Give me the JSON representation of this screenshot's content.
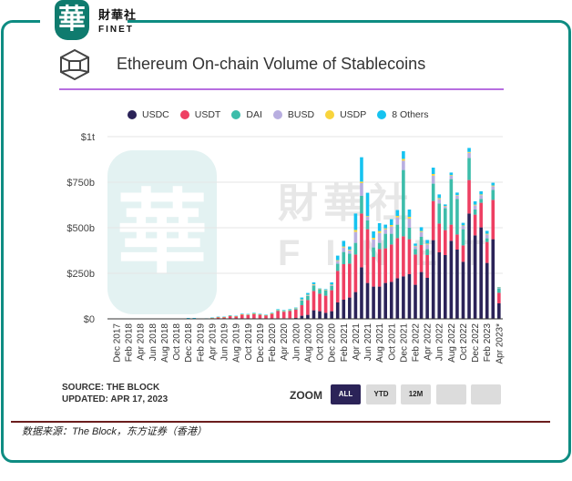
{
  "brand": {
    "logo_char": "華",
    "name_cn": "財華社",
    "name_en": "FINET"
  },
  "caption": "数据来源：The Block，东方证券（香港）",
  "source": {
    "line1": "SOURCE: THE BLOCK",
    "line2": "UPDATED: APR 17, 2023"
  },
  "zoom": {
    "label": "ZOOM",
    "buttons": [
      "ALL",
      "YTD",
      "12M",
      "",
      ""
    ],
    "active": "ALL"
  },
  "watermark": {
    "char": "華",
    "cn": "財華社",
    "en": "FINET"
  },
  "chart_data": {
    "type": "bar",
    "stacked": true,
    "title": "Ethereum On-chain Volume of Stablecoins",
    "xlabel": "",
    "ylabel": "",
    "ylim": [
      0,
      1000
    ],
    "y_unit": "billions USD",
    "y_ticks": [
      0,
      250,
      500,
      750,
      1000
    ],
    "y_tick_labels": [
      "$0",
      "$250b",
      "$500b",
      "$750b",
      "$1t"
    ],
    "grid": true,
    "legend_position": "top",
    "categories": [
      "Dec 2017",
      "Jan 2018",
      "Feb 2018",
      "Mar 2018",
      "Apr 2018",
      "May 2018",
      "Jun 2018",
      "Jul 2018",
      "Aug 2018",
      "Sep 2018",
      "Oct 2018",
      "Nov 2018",
      "Dec 2018",
      "Jan 2019",
      "Feb 2019",
      "Mar 2019",
      "Apr 2019",
      "May 2019",
      "Jun 2019",
      "Jul 2019",
      "Aug 2019",
      "Sep 2019",
      "Oct 2019",
      "Nov 2019",
      "Dec 2019",
      "Jan 2020",
      "Feb 2020",
      "Mar 2020",
      "Apr 2020",
      "May 2020",
      "Jun 2020",
      "Jul 2020",
      "Aug 2020",
      "Sep 2020",
      "Oct 2020",
      "Nov 2020",
      "Dec 2020",
      "Jan 2021",
      "Feb 2021",
      "Mar 2021",
      "Apr 2021",
      "May 2021",
      "Jun 2021",
      "Jul 2021",
      "Aug 2021",
      "Sep 2021",
      "Oct 2021",
      "Nov 2021",
      "Dec 2021",
      "Jan 2022",
      "Feb 2022",
      "Mar 2022",
      "Apr 2022",
      "May 2022",
      "Jun 2022",
      "Jul 2022",
      "Aug 2022",
      "Sep 2022",
      "Oct 2022",
      "Nov 2022",
      "Dec 2022",
      "Jan 2023",
      "Feb 2023",
      "Mar 2023",
      "Apr 2023"
    ],
    "x_tick_labels": [
      "Dec 2017",
      "Feb 2018",
      "Apr 2018",
      "Jun 2018",
      "Aug 2018",
      "Oct 2018",
      "Dec 2018",
      "Feb 2019",
      "Apr 2019",
      "Jun 2019",
      "Aug 2019",
      "Oct 2019",
      "Dec 2019",
      "Feb 2020",
      "Apr 2020",
      "Jun 2020",
      "Aug 2020",
      "Oct 2020",
      "Dec 2020",
      "Feb 2021",
      "Apr 2021",
      "Jun 2021",
      "Aug 2021",
      "Oct 2021",
      "Dec 2021",
      "Feb 2022",
      "Apr 2022",
      "Jun 2022",
      "Aug 2022",
      "Oct 2022",
      "Dec 2022",
      "Feb 2023",
      "Apr 2023*"
    ],
    "series": [
      {
        "name": "USDC",
        "color": "#2b2358",
        "values": [
          0,
          0,
          0,
          0,
          0,
          0,
          0,
          0,
          0,
          0,
          0,
          0,
          0,
          0,
          0,
          0,
          0,
          0,
          0,
          0,
          0,
          1,
          1,
          1,
          1,
          1,
          2,
          3,
          3,
          3,
          5,
          17,
          22,
          47,
          42,
          33,
          42,
          90,
          105,
          117,
          147,
          283,
          197,
          177,
          177,
          197,
          203,
          223,
          233,
          245,
          187,
          257,
          225,
          432,
          365,
          350,
          428,
          380,
          313,
          578,
          458,
          502,
          307,
          437,
          85
        ]
      },
      {
        "name": "USDT",
        "color": "#ee3f62",
        "values": [
          0,
          0,
          0,
          0,
          0,
          0,
          0,
          0,
          0,
          0,
          0,
          0,
          3,
          3,
          2,
          2,
          5,
          9,
          9,
          15,
          13,
          22,
          21,
          26,
          22,
          18,
          26,
          40,
          36,
          40,
          45,
          58,
          81,
          106,
          96,
          94,
          115,
          173,
          195,
          186,
          206,
          295,
          295,
          163,
          206,
          190,
          205,
          220,
          220,
          192,
          166,
          148,
          125,
          215,
          158,
          137,
          89,
          83,
          90,
          184,
          114,
          135,
          115,
          216,
          58
        ]
      },
      {
        "name": "DAI",
        "color": "#3dbdaa",
        "values": [
          0,
          0,
          0,
          0,
          0,
          0,
          0,
          0,
          0,
          0,
          0,
          0,
          0,
          0,
          0,
          0,
          0,
          0,
          0,
          0,
          0,
          0,
          0,
          1,
          1,
          1,
          1,
          3,
          3,
          4,
          5,
          25,
          22,
          30,
          25,
          30,
          23,
          40,
          67,
          55,
          64,
          97,
          48,
          52,
          34,
          80,
          59,
          74,
          364,
          63,
          30,
          45,
          33,
          95,
          110,
          120,
          250,
          195,
          89,
          121,
          28,
          21,
          20,
          55,
          24
        ]
      },
      {
        "name": "BUSD",
        "color": "#b8aee0",
        "values": [
          0,
          0,
          0,
          0,
          0,
          0,
          0,
          0,
          0,
          0,
          0,
          0,
          0,
          0,
          0,
          0,
          0,
          0,
          0,
          0,
          0,
          0,
          0,
          0,
          0,
          0,
          0,
          0,
          0,
          0,
          1,
          4,
          4,
          4,
          1,
          1,
          5,
          15,
          25,
          18,
          60,
          70,
          20,
          44,
          54,
          25,
          40,
          40,
          51,
          50,
          15,
          27,
          25,
          44,
          25,
          11,
          18,
          18,
          18,
          28,
          23,
          21,
          21,
          20,
          4
        ]
      },
      {
        "name": "USDP",
        "color": "#f8d43c",
        "values": [
          0,
          0,
          0,
          0,
          0,
          0,
          0,
          0,
          0,
          0,
          0,
          0,
          0,
          0,
          0,
          0,
          1,
          1,
          1,
          2,
          2,
          2,
          2,
          2,
          2,
          1,
          1,
          2,
          2,
          2,
          2,
          3,
          3,
          3,
          1,
          1,
          3,
          4,
          5,
          4,
          11,
          8,
          4,
          9,
          11,
          5,
          8,
          8,
          10,
          10,
          3,
          5,
          5,
          9,
          5,
          2,
          4,
          3,
          3,
          5,
          4,
          4,
          4,
          4,
          2
        ]
      },
      {
        "name": "8 Others",
        "color": "#16c3f0",
        "values": [
          0,
          0,
          0,
          0,
          0,
          0,
          0,
          0,
          0,
          0,
          0,
          0,
          2,
          2,
          0,
          1,
          1,
          2,
          2,
          3,
          2,
          3,
          3,
          3,
          2,
          2,
          3,
          5,
          4,
          4,
          4,
          10,
          10,
          10,
          2,
          4,
          12,
          25,
          31,
          17,
          90,
          134,
          128,
          35,
          43,
          20,
          32,
          32,
          42,
          40,
          12,
          21,
          20,
          35,
          20,
          8,
          14,
          14,
          14,
          22,
          18,
          17,
          16,
          15,
          2
        ]
      }
    ]
  }
}
